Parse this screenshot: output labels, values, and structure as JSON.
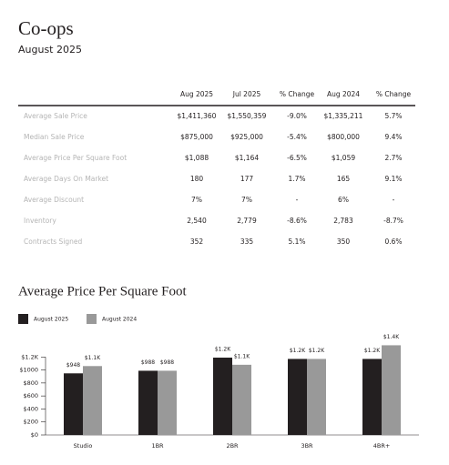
{
  "header": {
    "title": "Co-ops",
    "subtitle": "August 2025"
  },
  "table": {
    "columns": [
      "Aug 2025",
      "Jul 2025",
      "% Change",
      "Aug 2024",
      "% Change"
    ],
    "rows": [
      {
        "label": "Average Sale Price",
        "cells": [
          "$1,411,360",
          "$1,550,359",
          "-9.0%",
          "$1,335,211",
          "5.7%"
        ]
      },
      {
        "label": "Median Sale Price",
        "cells": [
          "$875,000",
          "$925,000",
          "-5.4%",
          "$800,000",
          "9.4%"
        ]
      },
      {
        "label": "Average Price Per Square Foot",
        "cells": [
          "$1,088",
          "$1,164",
          "-6.5%",
          "$1,059",
          "2.7%"
        ]
      },
      {
        "label": "Average Days On Market",
        "cells": [
          "180",
          "177",
          "1.7%",
          "165",
          "9.1%"
        ]
      },
      {
        "label": "Average Discount",
        "cells": [
          "7%",
          "7%",
          "-",
          "6%",
          "-"
        ]
      },
      {
        "label": "Inventory",
        "cells": [
          "2,540",
          "2,779",
          "-8.6%",
          "2,783",
          "-8.7%"
        ]
      },
      {
        "label": "Contracts Signed",
        "cells": [
          "352",
          "335",
          "5.1%",
          "350",
          "0.6%"
        ]
      }
    ]
  },
  "chart_data": {
    "type": "bar",
    "title": "Average Price Per Square Foot",
    "categories": [
      "Studio",
      "1BR",
      "2BR",
      "3BR",
      "4BR+"
    ],
    "series": [
      {
        "name": "August 2025",
        "color": "#231f20",
        "values": [
          948,
          988,
          1190,
          1170,
          1170
        ],
        "value_labels": [
          "$948",
          "$988",
          "$1.2K",
          "$1.2K",
          "$1.2K"
        ]
      },
      {
        "name": "August 2024",
        "color": "#999999",
        "values": [
          1060,
          988,
          1080,
          1170,
          1380
        ],
        "value_labels": [
          "$1.1K",
          "$988",
          "$1.1K",
          "$1.2K",
          "$1.4K"
        ]
      }
    ],
    "ylim": [
      0,
      1400
    ],
    "yticks": [
      {
        "value": 0,
        "label": "$0"
      },
      {
        "value": 200,
        "label": "$200"
      },
      {
        "value": 400,
        "label": "$400"
      },
      {
        "value": 600,
        "label": "$600"
      },
      {
        "value": 800,
        "label": "$800"
      },
      {
        "value": 1000,
        "label": "$1000"
      },
      {
        "value": 1200,
        "label": "$1.2K"
      }
    ]
  }
}
